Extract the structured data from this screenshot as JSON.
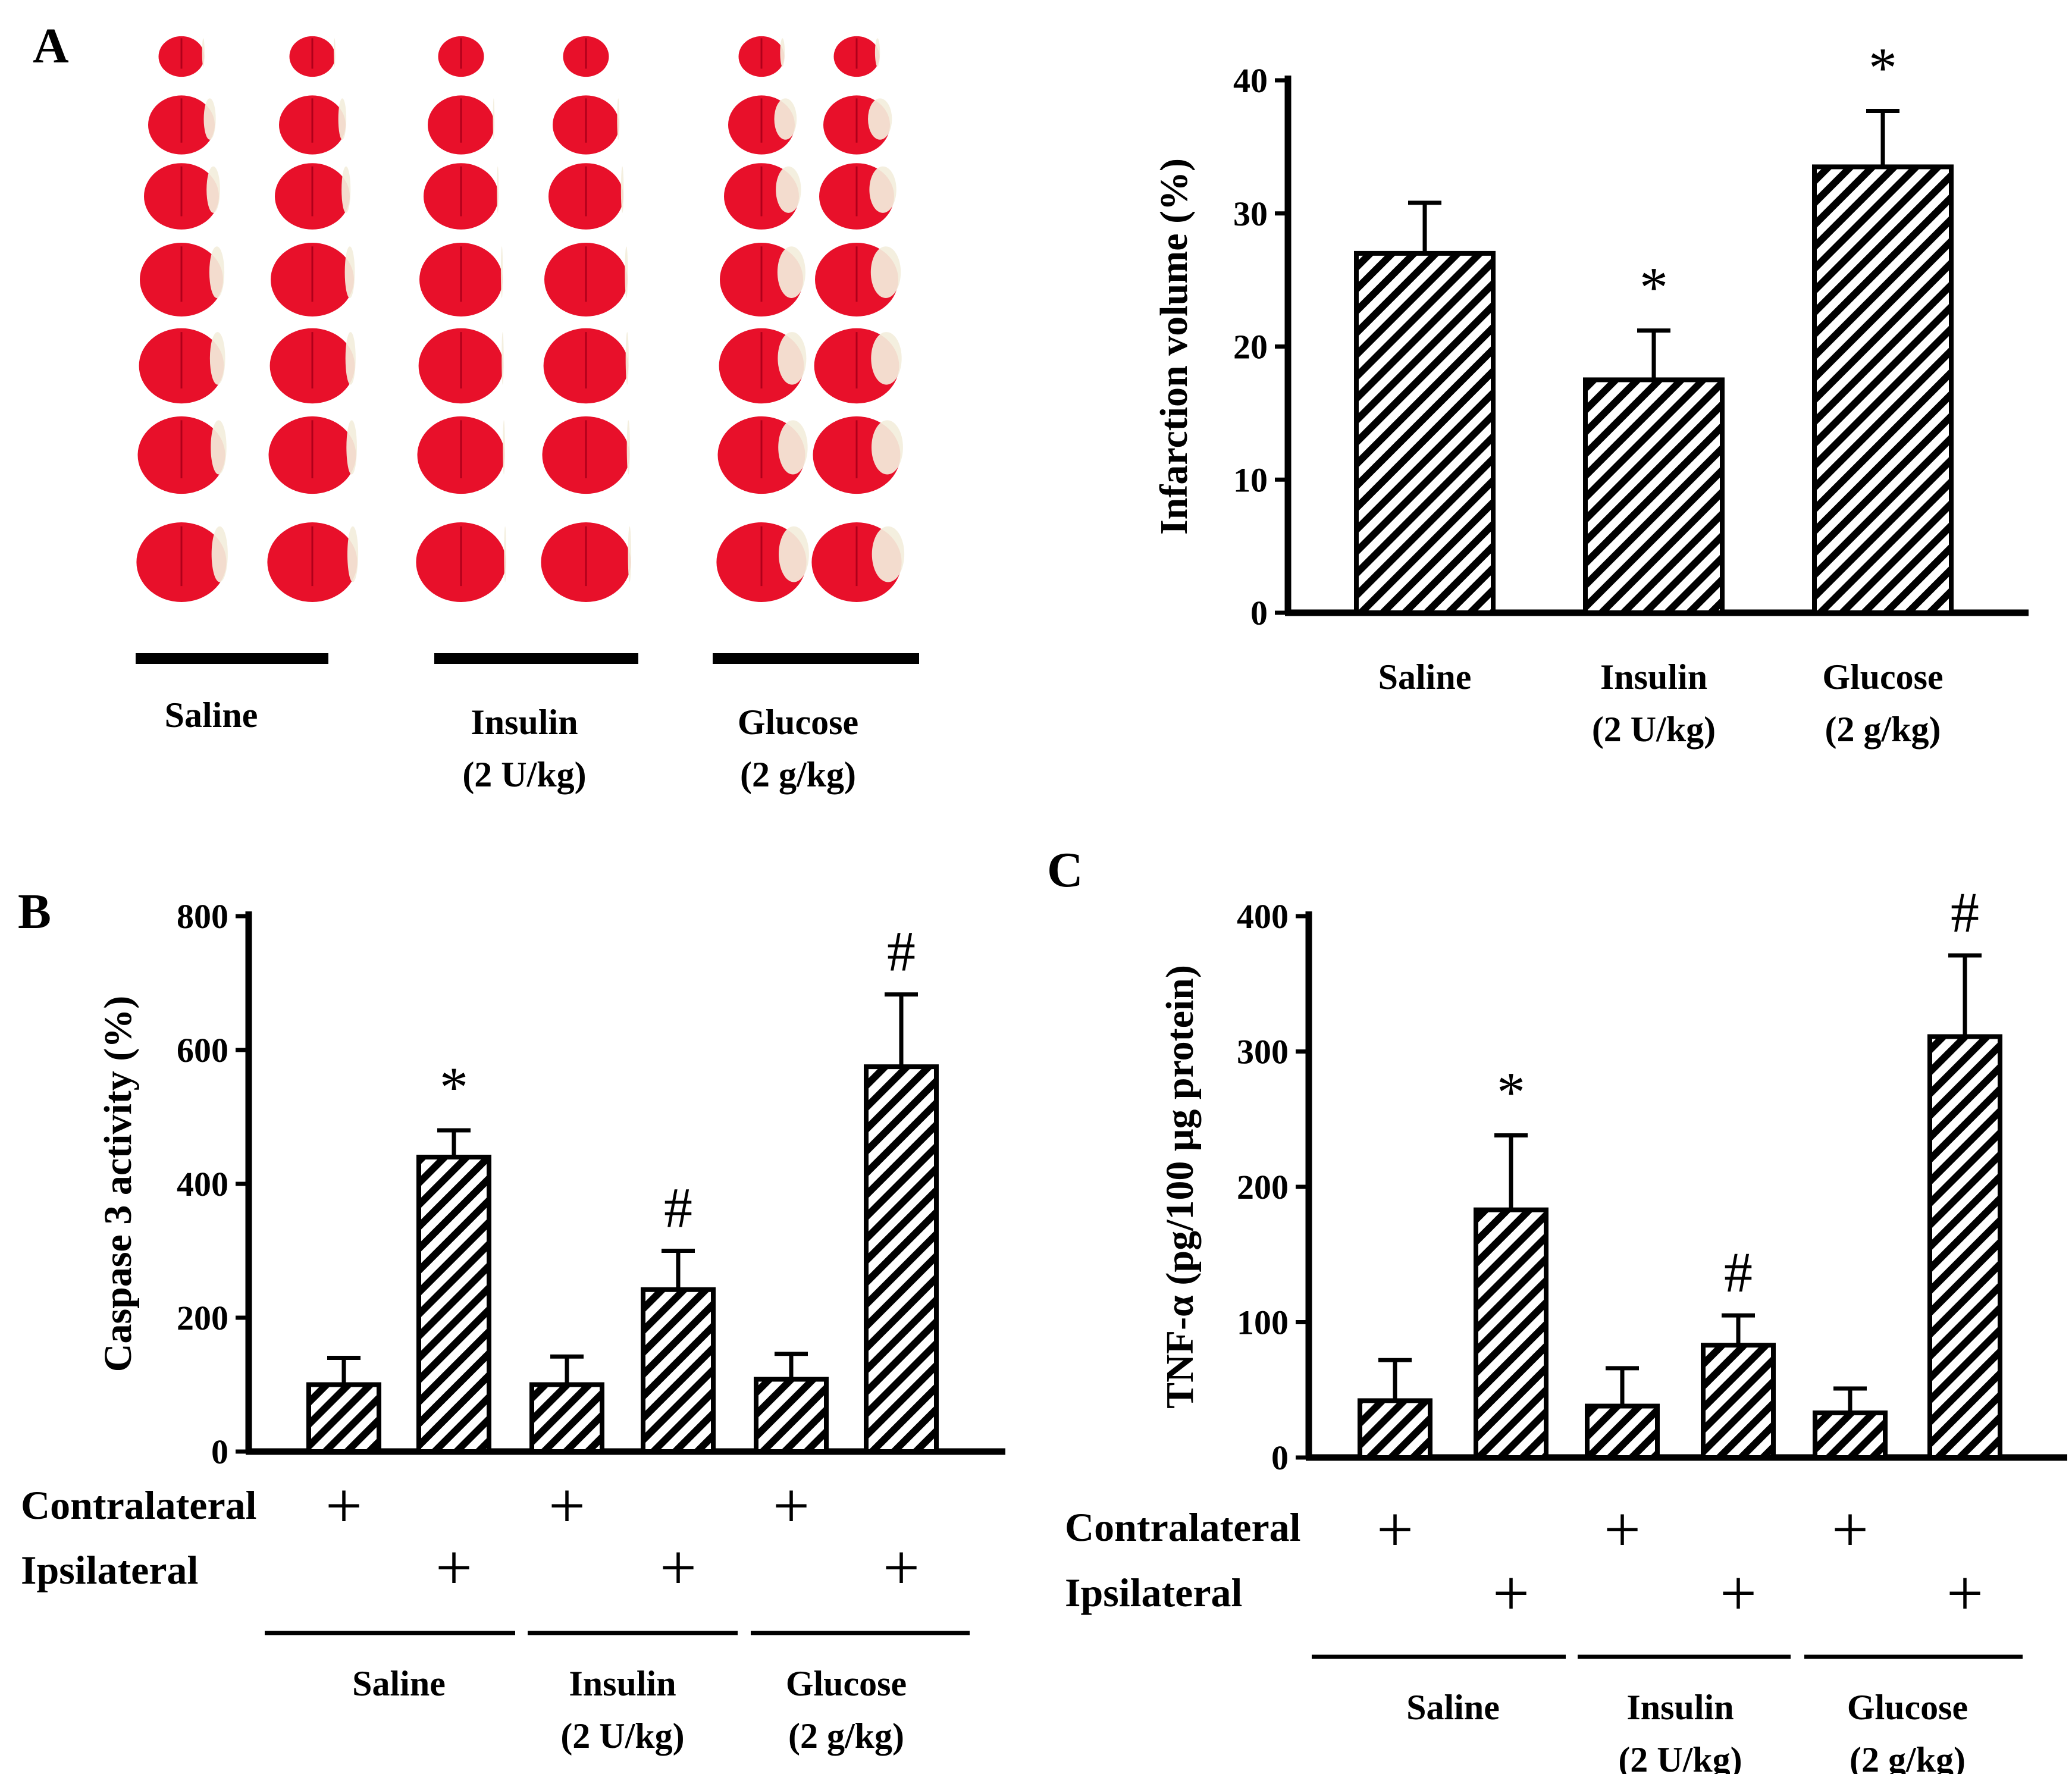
{
  "panels": {
    "A": {
      "letter": "A",
      "photo_groups": [
        "Saline",
        "Insulin\n(2 U/kg)",
        "Glucose\n(2 g/kg)"
      ]
    },
    "B": {
      "letter": "B"
    },
    "C": {
      "letter": "C"
    }
  },
  "row_labels": {
    "contralateral": "Contralateral",
    "ipsilateral": "Ipsilateral"
  },
  "plus_glyph": "+",
  "colors": {
    "bar_fill": "#ffffff",
    "hatch": "#000000",
    "axis": "#000000",
    "tissue_red": "#e8102a",
    "tissue_pale": "#f3eedc"
  },
  "chart_data": [
    {
      "id": "A",
      "type": "bar",
      "ylabel": "Infarction volume (%)",
      "categories": [
        "Saline",
        "Insulin\n(2 U/kg)",
        "Glucose\n(2 g/kg)"
      ],
      "values": [
        27,
        17.5,
        33.5
      ],
      "errors": [
        3.8,
        3.7,
        4.2
      ],
      "annotations": [
        "",
        "*",
        "*"
      ],
      "ylim": [
        0,
        40
      ],
      "yticks": [
        0,
        10,
        20,
        30,
        40
      ],
      "grid": false
    },
    {
      "id": "B",
      "type": "bar",
      "ylabel": "Caspase 3 activity (%)",
      "groups": [
        "Saline",
        "Insulin\n(2 U/kg)",
        "Glucose\n(2 g/kg)"
      ],
      "sides": [
        "Contralateral",
        "Ipsilateral"
      ],
      "values": [
        100,
        440,
        100,
        242,
        108,
        575
      ],
      "errors": [
        40,
        40,
        42,
        58,
        38,
        108
      ],
      "annotations": [
        "",
        "*",
        "",
        "#",
        "",
        "#"
      ],
      "ylim": [
        0,
        800
      ],
      "yticks": [
        0,
        200,
        400,
        600,
        800
      ],
      "grid": false
    },
    {
      "id": "C",
      "type": "bar",
      "ylabel": "TNF-α (pg/100 μg protein)",
      "groups": [
        "Saline",
        "Insulin\n(2 U/kg)",
        "Glucose\n(2 g/kg)"
      ],
      "sides": [
        "Contralateral",
        "Ipsilateral"
      ],
      "values": [
        42,
        183,
        38,
        83,
        33,
        311
      ],
      "errors": [
        30,
        55,
        28,
        22,
        18,
        60
      ],
      "annotations": [
        "",
        "*",
        "",
        "#",
        "",
        "#"
      ],
      "ylim": [
        0,
        400
      ],
      "yticks": [
        0,
        100,
        200,
        300,
        400
      ],
      "grid": false
    }
  ]
}
